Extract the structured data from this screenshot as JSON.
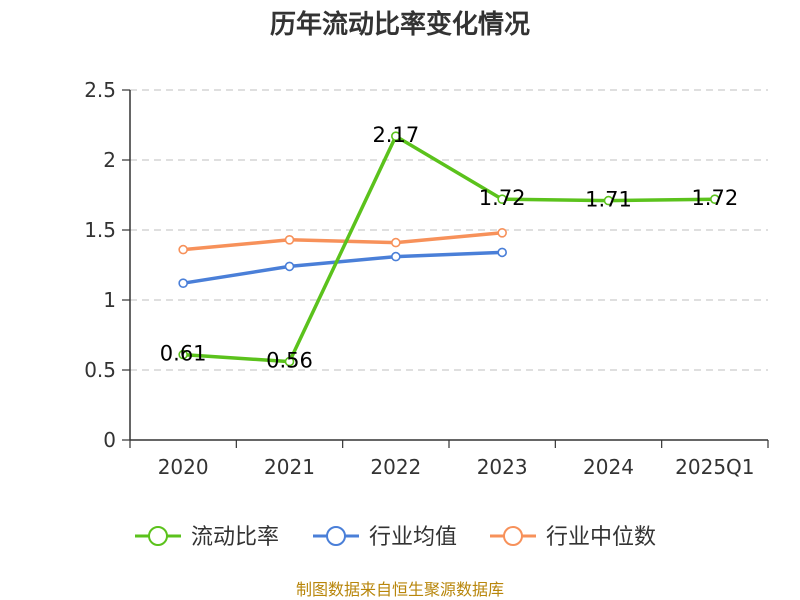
{
  "chart_data": {
    "type": "line",
    "title": "历年流动比率变化情况",
    "xlabel": "",
    "ylabel": "",
    "categories": [
      "2020",
      "2021",
      "2022",
      "2023",
      "2024",
      "2025Q1"
    ],
    "ylim": [
      0,
      2.5
    ],
    "yticks": [
      "0",
      "0.5",
      "1",
      "1.5",
      "2",
      "2.5"
    ],
    "grid": true,
    "legend_position": "bottom",
    "series": [
      {
        "name": "流动比率",
        "color": "#5bc21c",
        "values": [
          0.61,
          0.56,
          2.17,
          1.72,
          1.71,
          1.72
        ],
        "labels": [
          "0.61",
          "0.56",
          "2.17",
          "1.72",
          "1.71",
          "1.72"
        ]
      },
      {
        "name": "行业均值",
        "color": "#4a7fd8",
        "values": [
          1.12,
          1.24,
          1.31,
          1.34,
          null,
          null
        ]
      },
      {
        "name": "行业中位数",
        "color": "#f7915a",
        "values": [
          1.36,
          1.43,
          1.41,
          1.48,
          null,
          null
        ]
      }
    ]
  },
  "source": "制图数据来自恒生聚源数据库"
}
